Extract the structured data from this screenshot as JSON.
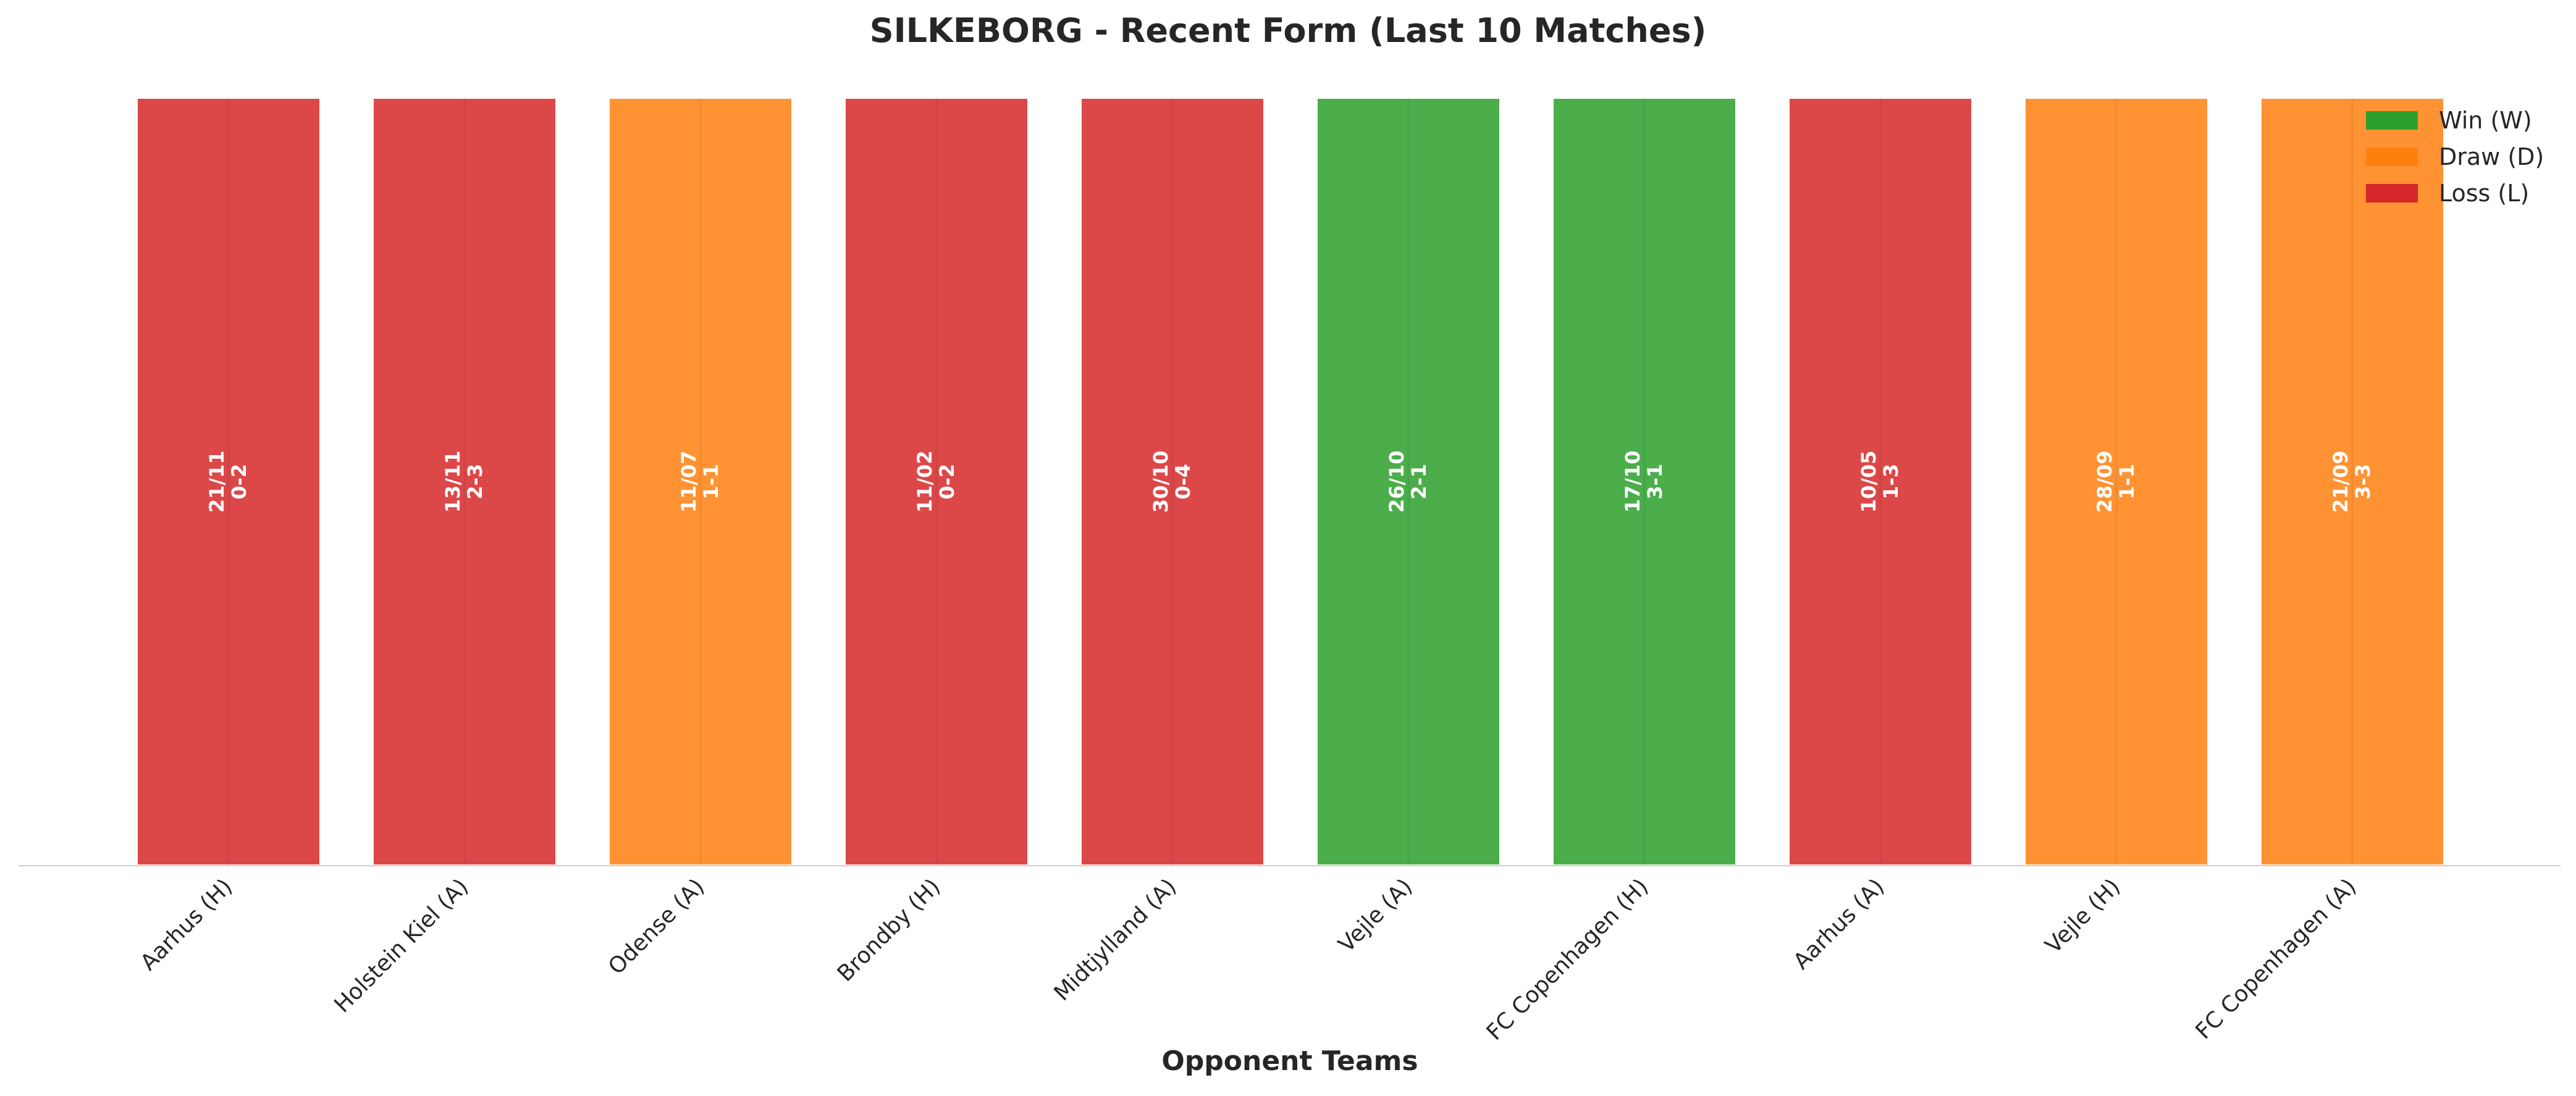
{
  "chart_data": {
    "type": "bar",
    "title": "SILKEBORG - Recent Form (Last 10 Matches)",
    "xlabel": "Opponent Teams",
    "ylabel": "",
    "ylim": [
      0,
      1
    ],
    "grid": false,
    "legend_position": "top-right",
    "categories": [
      "Aarhus (H)",
      "Holstein Kiel (A)",
      "Odense (A)",
      "Brondby (H)",
      "Midtjylland (A)",
      "Vejle (A)",
      "FC Copenhagen (H)",
      "Aarhus (A)",
      "Vejle (H)",
      "FC Copenhagen (A)"
    ],
    "values": [
      1,
      1,
      1,
      1,
      1,
      1,
      1,
      1,
      1,
      1
    ],
    "results": [
      "L",
      "L",
      "D",
      "L",
      "L",
      "W",
      "W",
      "L",
      "D",
      "D"
    ],
    "dates": [
      "21/11",
      "13/11",
      "11/07",
      "11/02",
      "30/10",
      "26/10",
      "17/10",
      "10/05",
      "28/09",
      "21/09"
    ],
    "scores": [
      "0-2",
      "2-3",
      "1-1",
      "0-2",
      "0-4",
      "2-1",
      "3-1",
      "1-3",
      "1-1",
      "3-3"
    ],
    "legend": [
      {
        "key": "W",
        "label": "Win (W)",
        "color": "#2ca02c"
      },
      {
        "key": "D",
        "label": "Draw (D)",
        "color": "#ff7f0e"
      },
      {
        "key": "L",
        "label": "Loss (L)",
        "color": "#d62728"
      }
    ]
  }
}
